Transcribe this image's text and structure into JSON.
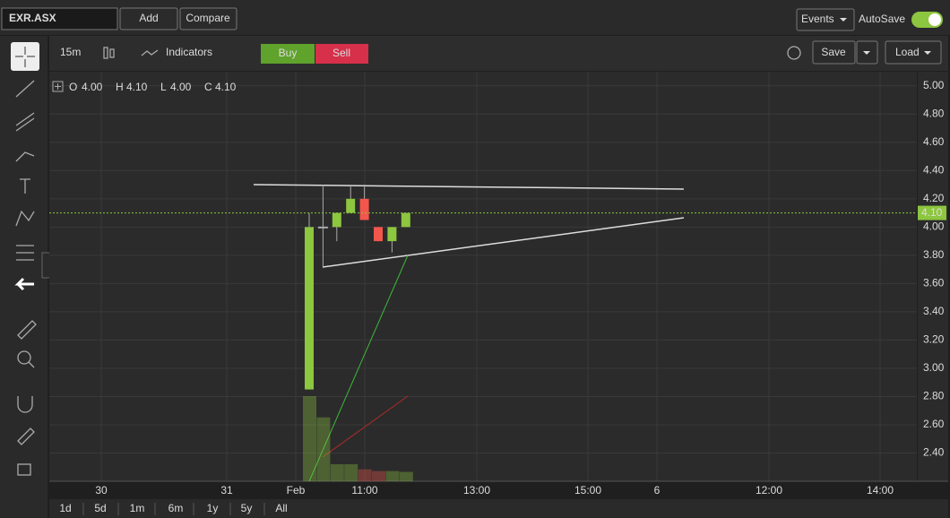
{
  "toolbar": {
    "symbol": "EXR.ASX",
    "add": "Add",
    "compare": "Compare",
    "events": "Events",
    "autosave": "AutoSave"
  },
  "chart_toolbar": {
    "interval": "15m",
    "indicators": "Indicators",
    "buy": "Buy",
    "sell": "Sell",
    "save": "Save",
    "load": "Load"
  },
  "legend": {
    "o_label": "O",
    "o": "4.00",
    "h_label": "H",
    "h": "4.10",
    "l_label": "L",
    "l": "4.00",
    "c_label": "C",
    "c": "4.10"
  },
  "ranges": [
    "1d",
    "5d",
    "1m",
    "6m",
    "1y",
    "5y",
    "All"
  ],
  "chart_data": {
    "type": "candlestick",
    "candles": [
      {
        "open": 2.85,
        "high": 4.1,
        "low": 2.85,
        "close": 4.0
      },
      {
        "open": 4.0,
        "high": 4.3,
        "low": 3.72,
        "close": 4.0
      },
      {
        "open": 4.0,
        "high": 4.1,
        "low": 3.9,
        "close": 4.1
      },
      {
        "open": 4.1,
        "high": 4.3,
        "low": 4.1,
        "close": 4.2
      },
      {
        "open": 4.2,
        "high": 4.3,
        "low": 4.05,
        "close": 4.05
      },
      {
        "open": 4.0,
        "high": 4.0,
        "low": 3.9,
        "close": 3.9
      },
      {
        "open": 3.9,
        "high": 4.0,
        "low": 3.82,
        "close": 4.0
      },
      {
        "open": 4.0,
        "high": 4.1,
        "low": 4.0,
        "close": 4.1
      }
    ],
    "volumes": [
      100,
      75,
      20,
      20,
      14,
      12,
      12,
      11
    ],
    "ylim": [
      2.2,
      5.1
    ],
    "yticks": [
      {
        "value": 5.0,
        "label": "5.00"
      },
      {
        "value": 4.8,
        "label": "4.80"
      },
      {
        "value": 4.6,
        "label": "4.60"
      },
      {
        "value": 4.4,
        "label": "4.40"
      },
      {
        "value": 4.2,
        "label": "4.20"
      },
      {
        "value": 4.0,
        "label": "4.00"
      },
      {
        "value": 3.8,
        "label": "3.80"
      },
      {
        "value": 3.6,
        "label": "3.60"
      },
      {
        "value": 3.4,
        "label": "3.40"
      },
      {
        "value": 3.2,
        "label": "3.20"
      },
      {
        "value": 3.0,
        "label": "3.00"
      },
      {
        "value": 2.8,
        "label": "2.80"
      },
      {
        "value": 2.6,
        "label": "2.60"
      },
      {
        "value": 2.4,
        "label": "2.40"
      }
    ],
    "last_price": {
      "value": 4.1,
      "label": "4.10"
    },
    "time_labels": [
      "30",
      "31",
      "Feb",
      "11:00",
      "13:00",
      "15:00",
      "6",
      "12:00",
      "14:00"
    ],
    "up_color": "#8dc63f",
    "down_color": "#f4564d",
    "grid": true
  }
}
